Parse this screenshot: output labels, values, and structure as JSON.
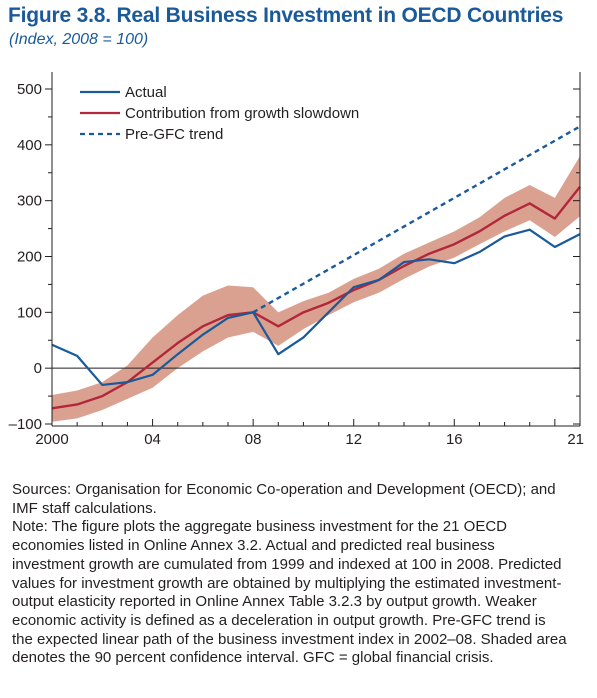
{
  "figure": {
    "title": "Figure 3.8.  Real Business Investment in OECD Countries",
    "subtitle": "(Index, 2008 = 100)"
  },
  "chart_data": {
    "type": "line",
    "x": [
      2000,
      2001,
      2002,
      2003,
      2004,
      2005,
      2006,
      2007,
      2008,
      2009,
      2010,
      2011,
      2012,
      2013,
      2014,
      2015,
      2016,
      2017,
      2018,
      2019,
      2020,
      2021
    ],
    "xticks": [
      2000,
      2004,
      2008,
      2012,
      2016,
      2021
    ],
    "xtick_labels": [
      "2000",
      "04",
      "08",
      "12",
      "16",
      "21"
    ],
    "yticks": [
      -100,
      0,
      100,
      200,
      300,
      400,
      500
    ],
    "ytick_labels": [
      "–100",
      "0",
      "100",
      "200",
      "300",
      "400",
      "500"
    ],
    "ylim": [
      -100,
      520
    ],
    "xlim": [
      2000,
      2021
    ],
    "legend_position": "top-left",
    "series": [
      {
        "name": "Actual",
        "style": "solid",
        "color": "#1a5a9a",
        "x": [
          2000,
          2001,
          2002,
          2003,
          2004,
          2005,
          2006,
          2007,
          2008,
          2009,
          2010,
          2011,
          2012,
          2013,
          2014,
          2015,
          2016,
          2017,
          2018,
          2019,
          2020,
          2021
        ],
        "values": [
          42,
          22,
          -30,
          -25,
          -12,
          25,
          60,
          90,
          100,
          25,
          55,
          100,
          145,
          158,
          190,
          195,
          188,
          208,
          236,
          248,
          217,
          240
        ]
      },
      {
        "name": "Contribution from growth slowdown",
        "style": "solid",
        "color": "#b2283a",
        "x": [
          2000,
          2001,
          2002,
          2003,
          2004,
          2005,
          2006,
          2007,
          2008,
          2009,
          2010,
          2011,
          2012,
          2013,
          2014,
          2015,
          2016,
          2017,
          2018,
          2019,
          2020,
          2021
        ],
        "values": [
          -72,
          -65,
          -50,
          -25,
          10,
          45,
          75,
          95,
          100,
          75,
          100,
          117,
          140,
          158,
          183,
          205,
          222,
          245,
          273,
          295,
          268,
          325
        ],
        "band_upper": [
          -48,
          -40,
          -25,
          5,
          55,
          95,
          130,
          148,
          145,
          100,
          120,
          135,
          160,
          178,
          205,
          225,
          245,
          270,
          305,
          328,
          305,
          380
        ],
        "band_lower": [
          -96,
          -90,
          -75,
          -55,
          -35,
          0,
          30,
          55,
          65,
          40,
          70,
          95,
          118,
          135,
          160,
          182,
          198,
          222,
          245,
          265,
          235,
          272
        ],
        "band_color": "#dba190"
      },
      {
        "name": "Pre-GFC trend",
        "style": "dashed",
        "color": "#1a5a9a",
        "x": [
          2008,
          2021
        ],
        "values": [
          100,
          433
        ]
      }
    ]
  },
  "notes": {
    "sources": "Sources: Organisation for Economic Co-operation and Development (OECD); and\nIMF staff calculations.",
    "note": "Note: The figure plots the aggregate business investment for the 21 OECD\neconomies listed in Online Annex 3.2. Actual and predicted real business\ninvestment growth are cumulated from 1999 and indexed at 100 in 2008. Predicted\nvalues for investment growth are obtained by multiplying the estimated investment-\noutput elasticity reported in Online Annex Table 3.2.3 by output growth. Weaker\neconomic activity is defined as a deceleration in output growth. Pre-GFC trend is\nthe expected linear path of the business investment index in 2002–08. Shaded area\ndenotes the 90 percent confidence interval. GFC = global financial crisis."
  }
}
